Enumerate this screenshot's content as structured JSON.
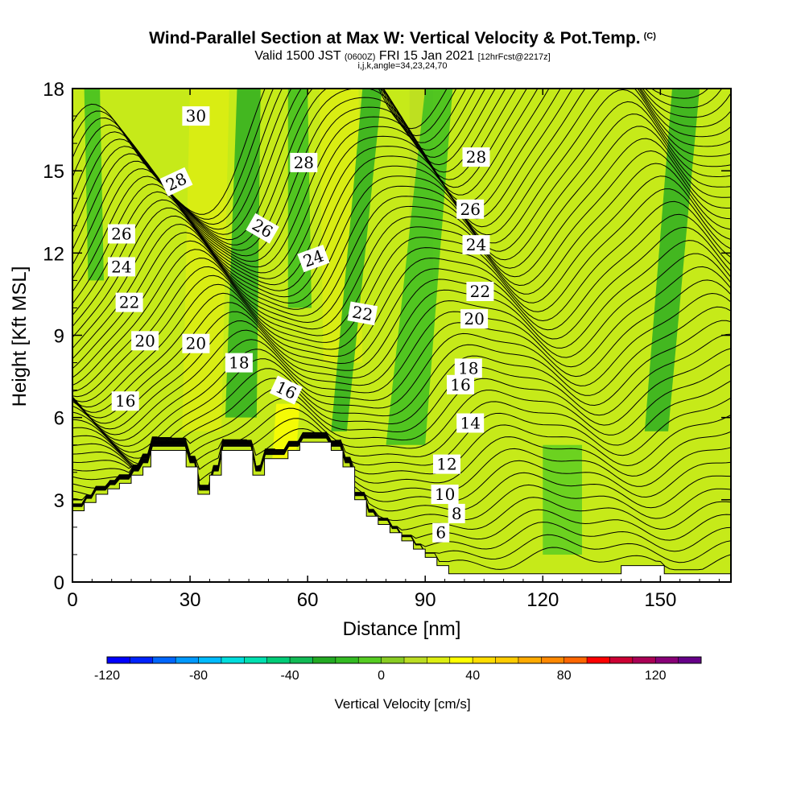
{
  "header": {
    "title": "Wind-Parallel Section at Max W: Vertical Velocity & Pot.Temp.",
    "title_mark": "(C)",
    "valid_prefix": "Valid 1500 JST",
    "valid_z": "(0600Z)",
    "valid_date": "FRI 15 Jan 2021",
    "valid_fcst": "[12hrFcst@2217z]",
    "params": "i,j,k,angle=34,23,24,70"
  },
  "chart_data": {
    "type": "heatmap",
    "xlabel": "Distance [nm]",
    "ylabel": "Height [Kft MSL]",
    "xlim": [
      0,
      168
    ],
    "ylim": [
      0,
      18
    ],
    "x_ticks": [
      "0",
      "30",
      "60",
      "90",
      "120",
      "150"
    ],
    "x_tick_values": [
      0,
      30,
      60,
      90,
      120,
      150
    ],
    "y_ticks": [
      "0",
      "3",
      "6",
      "9",
      "12",
      "15",
      "18"
    ],
    "y_tick_values": [
      0,
      3,
      6,
      9,
      12,
      15,
      18
    ],
    "background_color": "#c6ea19",
    "updraft_bands": [
      {
        "x0": 28,
        "x1": 38,
        "top_x0": 30,
        "top_x1": 40,
        "y0": 5.5,
        "y1": 18,
        "value": 20
      },
      {
        "x0": 64,
        "x1": 74,
        "top_x0": 63,
        "top_x1": 73,
        "y0": 8,
        "y1": 18,
        "value": 20
      },
      {
        "x0": 51,
        "x1": 57,
        "top_x0": 52,
        "top_x1": 58,
        "y0": 4.5,
        "y1": 6.5,
        "value": 30
      },
      {
        "x0": 86,
        "x1": 92,
        "top_x0": 86,
        "top_x1": 92,
        "y0": 11,
        "y1": 18,
        "value": 15
      }
    ],
    "downdraft_bands": [
      {
        "x0": 4,
        "x1": 8,
        "top_x0": 3,
        "top_x1": 7,
        "y0": 11,
        "y1": 18,
        "value": -20
      },
      {
        "x0": 39,
        "x1": 47,
        "top_x0": 42,
        "top_x1": 48,
        "y0": 6,
        "y1": 18,
        "value": -25
      },
      {
        "x0": 55,
        "x1": 61,
        "top_x0": 55,
        "top_x1": 60,
        "y0": 10,
        "y1": 18,
        "value": -20
      },
      {
        "x0": 66,
        "x1": 70,
        "top_x0": 74,
        "top_x1": 79,
        "y0": 5.5,
        "y1": 18,
        "value": -25
      },
      {
        "x0": 80,
        "x1": 90,
        "top_x0": 90,
        "top_x1": 97,
        "y0": 5,
        "y1": 18,
        "value": -15
      },
      {
        "x0": 120,
        "x1": 130,
        "top_x0": 120,
        "top_x1": 130,
        "y0": 1,
        "y1": 5,
        "value": -10
      },
      {
        "x0": 146,
        "x1": 152,
        "top_x0": 153,
        "top_x1": 160,
        "y0": 5.5,
        "y1": 18,
        "value": -25
      }
    ],
    "terrain": [
      [
        0,
        2.6
      ],
      [
        3,
        2.6
      ],
      [
        3,
        2.9
      ],
      [
        6,
        2.9
      ],
      [
        6,
        3.2
      ],
      [
        9,
        3.2
      ],
      [
        9,
        3.4
      ],
      [
        12,
        3.4
      ],
      [
        12,
        3.6
      ],
      [
        15,
        3.6
      ],
      [
        15,
        3.9
      ],
      [
        18,
        3.9
      ],
      [
        18,
        4.2
      ],
      [
        20,
        4.2
      ],
      [
        20,
        4.8
      ],
      [
        29,
        4.8
      ],
      [
        29,
        4.2
      ],
      [
        32,
        4.2
      ],
      [
        32,
        3.2
      ],
      [
        35,
        3.2
      ],
      [
        35,
        3.9
      ],
      [
        38,
        3.9
      ],
      [
        38,
        4.8
      ],
      [
        46,
        4.8
      ],
      [
        46,
        3.9
      ],
      [
        49,
        3.9
      ],
      [
        49,
        4.5
      ],
      [
        55,
        4.5
      ],
      [
        55,
        4.8
      ],
      [
        58,
        4.8
      ],
      [
        58,
        5.1
      ],
      [
        66,
        5.1
      ],
      [
        66,
        4.8
      ],
      [
        69,
        4.8
      ],
      [
        69,
        4.2
      ],
      [
        72,
        4.2
      ],
      [
        72,
        3.0
      ],
      [
        75,
        3.0
      ],
      [
        75,
        2.4
      ],
      [
        78,
        2.4
      ],
      [
        78,
        2.1
      ],
      [
        81,
        2.1
      ],
      [
        81,
        1.8
      ],
      [
        84,
        1.8
      ],
      [
        84,
        1.5
      ],
      [
        87,
        1.5
      ],
      [
        87,
        1.2
      ],
      [
        90,
        1.2
      ],
      [
        90,
        0.9
      ],
      [
        93,
        0.9
      ],
      [
        93,
        0.6
      ],
      [
        96,
        0.6
      ],
      [
        96,
        0.3
      ],
      [
        140,
        0.3
      ],
      [
        140,
        0.6
      ],
      [
        151,
        0.6
      ],
      [
        151,
        0.3
      ],
      [
        168,
        0.3
      ]
    ],
    "isentrope_labels": [
      {
        "text": "30",
        "x": 31.5,
        "y": 17.0,
        "angle": 0
      },
      {
        "text": "28",
        "x": 26.5,
        "y": 14.6,
        "angle": -25
      },
      {
        "text": "28",
        "x": 59,
        "y": 15.3,
        "angle": 0
      },
      {
        "text": "28",
        "x": 103,
        "y": 15.5,
        "angle": 0
      },
      {
        "text": "26",
        "x": 12.5,
        "y": 12.7,
        "angle": 0
      },
      {
        "text": "26",
        "x": 48.5,
        "y": 12.9,
        "angle": 30
      },
      {
        "text": "26",
        "x": 101.5,
        "y": 13.6,
        "angle": 0
      },
      {
        "text": "24",
        "x": 12.5,
        "y": 11.5,
        "angle": 0
      },
      {
        "text": "24",
        "x": 61.5,
        "y": 11.8,
        "angle": -20
      },
      {
        "text": "24",
        "x": 103,
        "y": 12.3,
        "angle": 0
      },
      {
        "text": "22",
        "x": 14.5,
        "y": 10.2,
        "angle": 0
      },
      {
        "text": "22",
        "x": 74,
        "y": 9.8,
        "angle": 10
      },
      {
        "text": "22",
        "x": 104,
        "y": 10.6,
        "angle": 0
      },
      {
        "text": "20",
        "x": 18.5,
        "y": 8.8,
        "angle": 0
      },
      {
        "text": "20",
        "x": 31.5,
        "y": 8.7,
        "angle": 0
      },
      {
        "text": "20",
        "x": 102.5,
        "y": 9.6,
        "angle": 0
      },
      {
        "text": "18",
        "x": 42.5,
        "y": 8.0,
        "angle": 0
      },
      {
        "text": "18",
        "x": 101,
        "y": 7.8,
        "angle": 0
      },
      {
        "text": "16",
        "x": 13.5,
        "y": 6.6,
        "angle": 0
      },
      {
        "text": "16",
        "x": 54.5,
        "y": 7.0,
        "angle": 25
      },
      {
        "text": "16",
        "x": 99,
        "y": 7.2,
        "angle": 0
      },
      {
        "text": "14",
        "x": 101.5,
        "y": 5.8,
        "angle": 0
      },
      {
        "text": "12",
        "x": 95.5,
        "y": 4.3,
        "angle": 0
      },
      {
        "text": "10",
        "x": 95,
        "y": 3.2,
        "angle": 0
      },
      {
        "text": "8",
        "x": 98,
        "y": 2.5,
        "angle": 0
      },
      {
        "text": "6",
        "x": 94,
        "y": 1.8,
        "angle": 0
      }
    ],
    "colorbar": {
      "title": "Vertical Velocity [cm/s]",
      "tick_labels": [
        "-120",
        "-80",
        "-40",
        "0",
        "40",
        "80",
        "120"
      ],
      "tick_values": [
        -120,
        -80,
        -40,
        0,
        40,
        80,
        120
      ],
      "min": -120,
      "max": 140,
      "step": 10,
      "colors": [
        "#0000ff",
        "#0022ff",
        "#0066ff",
        "#0099ff",
        "#00bbff",
        "#00dddd",
        "#00e0b0",
        "#00cc77",
        "#11bb55",
        "#22aa22",
        "#33bb22",
        "#55cc22",
        "#88cc22",
        "#bbdd22",
        "#ddee11",
        "#ffff00",
        "#ffdd00",
        "#ffcc00",
        "#ffaa00",
        "#ff8800",
        "#ff6600",
        "#ff0000",
        "#cc0033",
        "#aa0055",
        "#880077",
        "#660088"
      ]
    }
  }
}
